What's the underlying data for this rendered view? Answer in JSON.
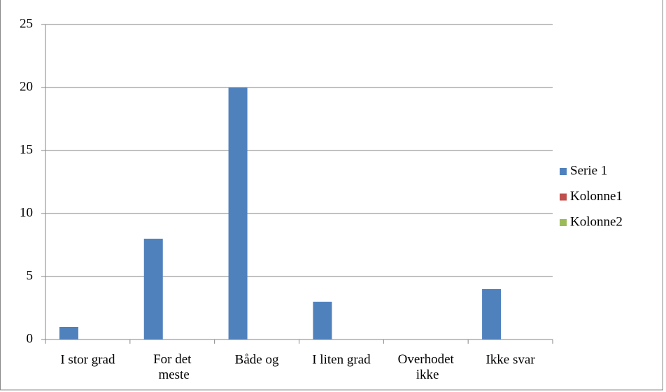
{
  "chart_data": {
    "type": "bar",
    "categories": [
      "I stor grad",
      "For det meste",
      "Både og",
      "I liten grad",
      "Overhodet ikke",
      "Ikke svar"
    ],
    "series": [
      {
        "name": "Serie 1",
        "color": "#4f81bd",
        "values": [
          1,
          8,
          20,
          3,
          0,
          4
        ]
      },
      {
        "name": "Kolonne1",
        "color": "#c0504d",
        "values": [
          null,
          null,
          null,
          null,
          null,
          null
        ]
      },
      {
        "name": "Kolonne2",
        "color": "#9bbb59",
        "values": [
          null,
          null,
          null,
          null,
          null,
          null
        ]
      }
    ],
    "ylim": [
      0,
      25
    ],
    "yticks": [
      0,
      5,
      10,
      15,
      20,
      25
    ],
    "grid": true,
    "legend": "right"
  }
}
